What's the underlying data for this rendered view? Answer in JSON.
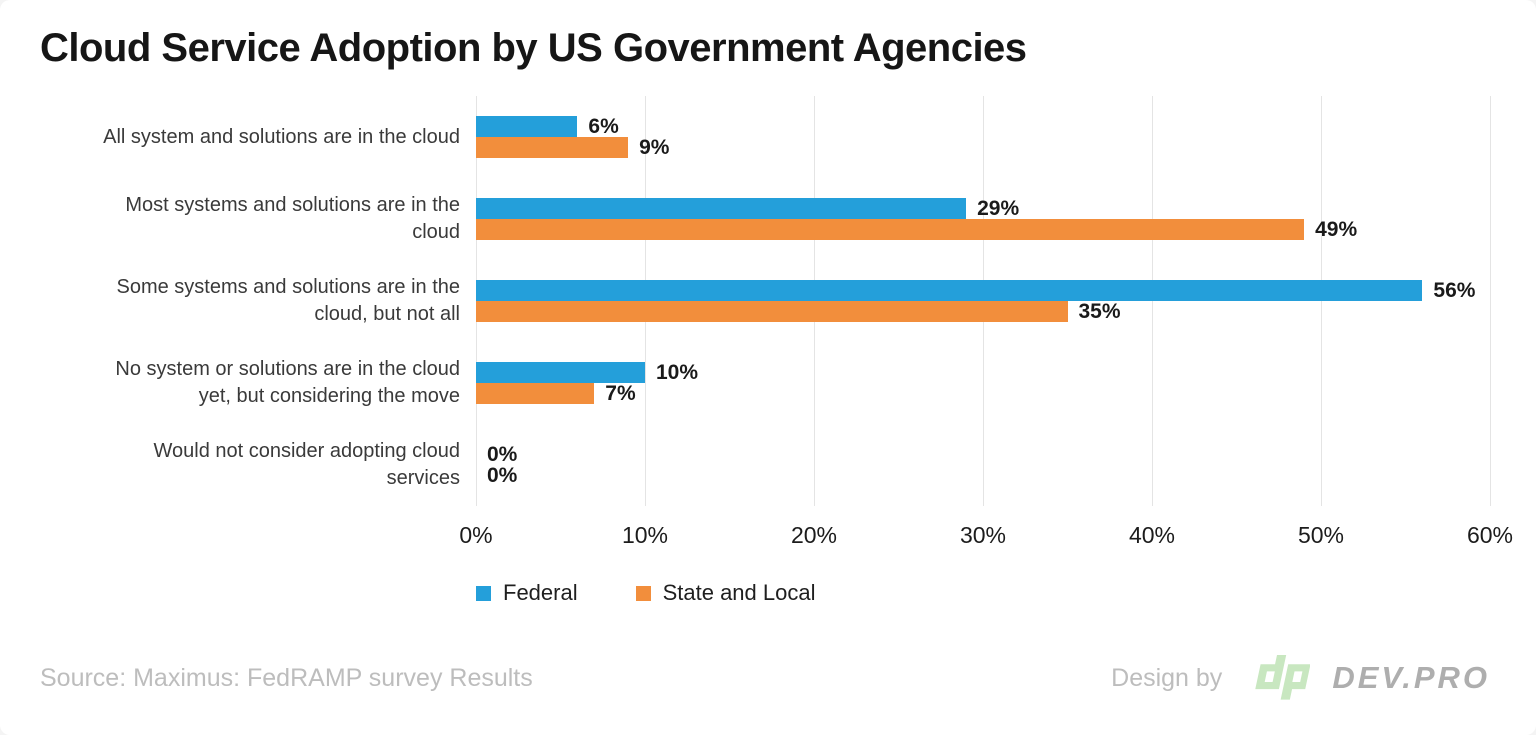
{
  "chart_data": {
    "type": "bar",
    "orientation": "horizontal",
    "title": "Cloud Service Adoption by US Government Agencies",
    "categories": [
      "All system and solutions are in the cloud",
      "Most systems and solutions are in the cloud",
      "Some systems and solutions are in the cloud, but not all",
      "No system or solutions are in the cloud yet, but considering the move",
      "Would not consider adopting cloud services"
    ],
    "categories_wrapped": [
      [
        "All system and solutions are in the cloud"
      ],
      [
        "Most systems and solutions are in the",
        "cloud"
      ],
      [
        "Some systems and solutions are in the",
        "cloud, but not all"
      ],
      [
        "No system or solutions are in the cloud",
        "yet, but considering the move"
      ],
      [
        "Would not consider adopting cloud",
        "services"
      ]
    ],
    "series": [
      {
        "name": "Federal",
        "color": "#249fda",
        "values": [
          6,
          29,
          56,
          10,
          0
        ]
      },
      {
        "name": "State and Local",
        "color": "#f28e3c",
        "values": [
          9,
          49,
          35,
          7,
          0
        ]
      }
    ],
    "value_suffix": "%",
    "xlim": [
      0,
      60
    ],
    "x_ticks": [
      "0%",
      "10%",
      "20%",
      "30%",
      "40%",
      "50%",
      "60%"
    ],
    "grid": "vertical",
    "legend_position": "bottom-left",
    "data_labels": true
  },
  "footer": {
    "source": "Source: Maximus: FedRAMP survey Results",
    "design_by": "Design by",
    "brand": "DEV.PRO"
  },
  "colors": {
    "background": "#ffffff",
    "gridline": "#e4e4e4",
    "title_text": "#161616",
    "category_text": "#3a3a3a",
    "footer_text": "#bdbdbd",
    "brand_text": "#aeaeae",
    "logo_green": "#c8e7c0"
  }
}
